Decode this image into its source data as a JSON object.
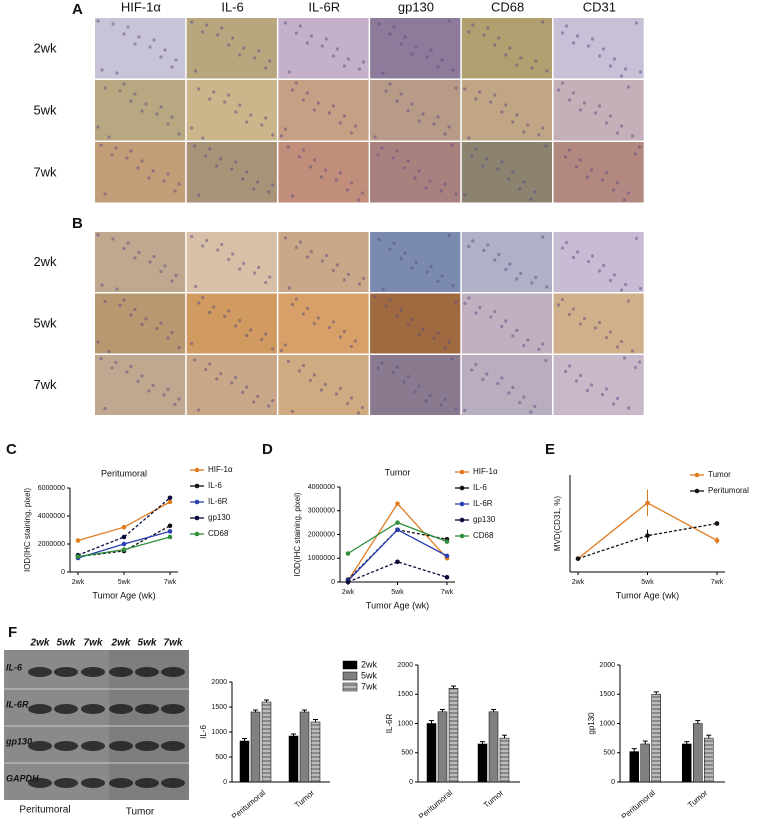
{
  "ihc": {
    "columns": [
      "HIF-1α",
      "IL-6",
      "IL-6R",
      "gp130",
      "CD68",
      "CD31"
    ],
    "panel_a": {
      "letter": "A",
      "rows": [
        "2wk",
        "5wk",
        "7wk"
      ]
    },
    "panel_b": {
      "letter": "B",
      "rows": [
        "2wk",
        "5wk",
        "7wk"
      ]
    }
  },
  "blot": {
    "letter": "F",
    "lanes": [
      "2wk",
      "5wk",
      "7wk",
      "2wk",
      "5wk",
      "7wk"
    ],
    "bands": [
      "IL-6",
      "IL-6R",
      "gp130",
      "GAPDH"
    ],
    "groups": [
      "Peritumoral",
      "Tumor"
    ]
  },
  "chart_data": [
    {
      "type": "line",
      "label": "C",
      "title": "Peritumoral",
      "xlabel": "Tumor Age (wk)",
      "ylabel": "IOD(IHC staining, pixel)",
      "categories": [
        "2wk",
        "5wk",
        "7wk"
      ],
      "ylim": [
        0,
        6000000
      ],
      "yticks": [
        0,
        2000000,
        4000000,
        6000000
      ],
      "series": [
        {
          "name": "HIF-1α",
          "color": "#e07b20",
          "values": [
            2250000,
            3200000,
            5000000
          ]
        },
        {
          "name": "IL-6",
          "color": "#111111",
          "values": [
            1100000,
            1500000,
            3300000
          ]
        },
        {
          "name": "IL-6R",
          "color": "#2a3fb0",
          "values": [
            1000000,
            2000000,
            2900000
          ]
        },
        {
          "name": "gp130",
          "color": "#0b0b3a",
          "values": [
            1200000,
            2500000,
            5300000
          ]
        },
        {
          "name": "CD68",
          "color": "#2f8f3a",
          "values": [
            1100000,
            1600000,
            2500000
          ]
        }
      ]
    },
    {
      "type": "line",
      "label": "D",
      "title": "Tumor",
      "xlabel": "Tumor Age (wk)",
      "ylabel": "IOD(IHC staining, pixel)",
      "categories": [
        "2wk",
        "5wk",
        "7wk"
      ],
      "ylim": [
        0,
        4000000
      ],
      "yticks": [
        0,
        1000000,
        2000000,
        3000000,
        4000000
      ],
      "series": [
        {
          "name": "HIF-1α",
          "color": "#e07b20",
          "values": [
            50000,
            3300000,
            1000000
          ]
        },
        {
          "name": "IL-6",
          "color": "#111111",
          "values": [
            100000,
            2200000,
            1800000
          ]
        },
        {
          "name": "IL-6R",
          "color": "#2a3fb0",
          "values": [
            50000,
            2200000,
            1100000
          ]
        },
        {
          "name": "gp130",
          "color": "#0b0b3a",
          "values": [
            0,
            850000,
            200000
          ]
        },
        {
          "name": "CD68",
          "color": "#2f8f3a",
          "values": [
            1200000,
            2500000,
            1700000
          ]
        }
      ]
    },
    {
      "type": "line",
      "label": "E",
      "xlabel": "Tumor Age (wk)",
      "ylabel": "MVD(CD31, %)",
      "categories": [
        "2wk",
        "5wk",
        "7wk"
      ],
      "ylim": [
        0,
        40
      ],
      "series": [
        {
          "name": "Tumor",
          "color": "#e07b20",
          "values": [
            5.5,
            28.5,
            13
          ],
          "errors": [
            0.5,
            5.5,
            1.5
          ]
        },
        {
          "name": "Peritumoral",
          "color": "#111111",
          "values": [
            5.5,
            15,
            20
          ],
          "errors": [
            0.5,
            2.5,
            1
          ]
        }
      ]
    },
    {
      "type": "bar",
      "ylabel": "IL-6",
      "categories": [
        "Peritumoral",
        "Tumor"
      ],
      "ylim": [
        0,
        2000
      ],
      "yticks": [
        0,
        500,
        1000,
        1500,
        2000
      ],
      "series": [
        {
          "name": "2wk",
          "color": "#000000",
          "values": [
            820,
            920
          ],
          "errors": [
            50,
            40
          ]
        },
        {
          "name": "5wk",
          "color": "#808080",
          "values": [
            1400,
            1400
          ],
          "errors": [
            40,
            40
          ]
        },
        {
          "name": "7wk",
          "color": "#a0a0a0",
          "hatch": true,
          "values": [
            1600,
            1200
          ],
          "errors": [
            40,
            50
          ]
        }
      ]
    },
    {
      "type": "bar",
      "ylabel": "IL-6R",
      "categories": [
        "Peritumoral",
        "Tumor"
      ],
      "ylim": [
        0,
        2000
      ],
      "yticks": [
        0,
        500,
        1000,
        1500,
        2000
      ],
      "series": [
        {
          "color": "#000000",
          "values": [
            1000,
            650
          ],
          "errors": [
            50,
            40
          ]
        },
        {
          "color": "#808080",
          "values": [
            1200,
            1200
          ],
          "errors": [
            40,
            40
          ]
        },
        {
          "color": "#a0a0a0",
          "hatch": true,
          "values": [
            1600,
            750
          ],
          "errors": [
            40,
            50
          ]
        }
      ]
    },
    {
      "type": "bar",
      "ylabel": "gp130",
      "categories": [
        "Peritumoral",
        "Tumor"
      ],
      "ylim": [
        0,
        2000
      ],
      "yticks": [
        0,
        500,
        1000,
        1500,
        2000
      ],
      "series": [
        {
          "color": "#000000",
          "values": [
            520,
            650
          ],
          "errors": [
            50,
            40
          ]
        },
        {
          "color": "#808080",
          "values": [
            650,
            1000
          ],
          "errors": [
            50,
            50
          ]
        },
        {
          "color": "#a0a0a0",
          "hatch": true,
          "values": [
            1500,
            750
          ],
          "errors": [
            40,
            50
          ]
        }
      ]
    }
  ]
}
